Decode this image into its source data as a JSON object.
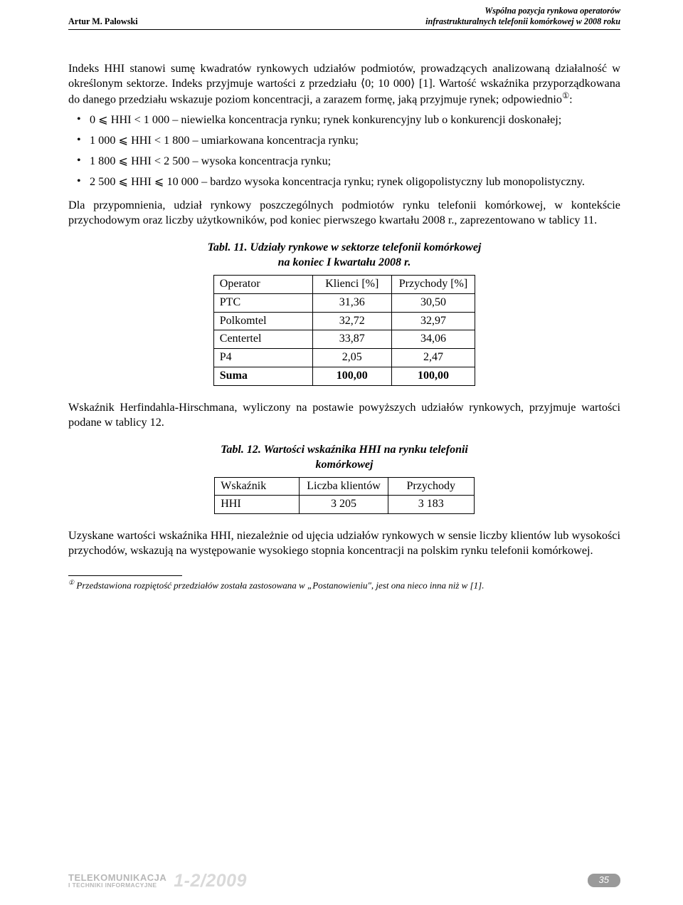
{
  "header": {
    "author": "Artur M. Palowski",
    "title_line1": "Wspólna pozycja rynkowa operatorów",
    "title_line2": "infrastrukturalnych telefonii komórkowej w 2008 roku"
  },
  "para1": "Indeks HHI stanowi sumę kwadratów rynkowych udziałów podmiotów, prowadzących analizowaną działalność w określonym sektorze. Indeks przyjmuje wartości z przedziału ⟨0; 10 000⟩ [1]. Wartość wskaźnika przyporządkowana do danego przedziału wskazuje poziom koncentracji, a zarazem formę, jaką przyjmuje rynek; odpowiednio",
  "para1_sup": "①",
  "para1_tail": ":",
  "bullets": [
    "0 ⩽ HHI < 1 000 – niewielka koncentracja rynku; rynek konkurencyjny lub o konkurencji doskonałej;",
    "1 000 ⩽ HHI < 1 800 – umiarkowana koncentracja rynku;",
    "1 800 ⩽ HHI < 2 500 – wysoka koncentracja rynku;",
    "2 500 ⩽ HHI ⩽ 10 000 – bardzo wysoka koncentracja rynku; rynek oligopolistyczny lub monopolistyczny."
  ],
  "para2": "Dla przypomnienia, udział rynkowy poszczególnych podmiotów rynku telefonii komórkowej, w kontekście przychodowym oraz liczby użytkowników, pod koniec pierwszego kwartału 2008 r., zaprezentowano w tablicy 11.",
  "table11": {
    "caption_l1": "Tabl. 11. Udziały rynkowe w sektorze telefonii komórkowej",
    "caption_l2": "na koniec I kwartału 2008 r.",
    "columns": [
      "Operator",
      "Klienci [%]",
      "Przychody [%]"
    ],
    "rows": [
      [
        "PTC",
        "31,36",
        "30,50"
      ],
      [
        "Polkomtel",
        "32,72",
        "32,97"
      ],
      [
        "Centertel",
        "33,87",
        "34,06"
      ],
      [
        "P4",
        "2,05",
        "2,47"
      ]
    ],
    "sum": [
      "Suma",
      "100,00",
      "100,00"
    ]
  },
  "para3": "Wskaźnik Herfindahla-Hirschmana, wyliczony na postawie powyższych udziałów rynkowych, przyjmuje wartości podane w tablicy 12.",
  "table12": {
    "caption_l1": "Tabl. 12. Wartości wskaźnika HHI na rynku telefonii",
    "caption_l2": "komórkowej",
    "columns": [
      "Wskaźnik",
      "Liczba klientów",
      "Przychody"
    ],
    "rows": [
      [
        "HHI",
        "3 205",
        "3 183"
      ]
    ]
  },
  "para4": "Uzyskane wartości wskaźnika HHI, niezależnie od ujęcia udziałów rynkowych w sensie liczby klientów lub wysokości przychodów, wskazują na występowanie wysokiego stopnia koncentracji na polskim rynku telefonii komórkowej.",
  "footnote": {
    "marker": "①",
    "text": " Przedstawiona rozpiętość przedziałów została zastosowana w „Postanowieniu\", jest ona nieco inna niż w [1]."
  },
  "footer": {
    "journal_top": "TELEKOMUNIKACJA",
    "journal_bot": "I TECHNIKI INFORMACYJNE",
    "issue": "1-2/2009",
    "page": "35"
  },
  "colors": {
    "text": "#000000",
    "footer_gray": "#b7b7b7",
    "issue_gray": "#d9d9d9",
    "badge_bg": "#9a9a9a",
    "badge_fg": "#ffffff"
  }
}
